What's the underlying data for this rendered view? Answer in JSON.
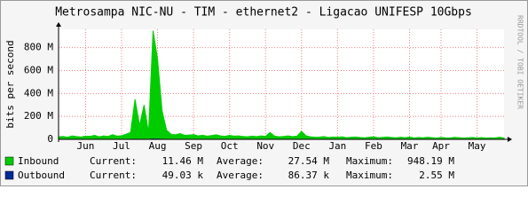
{
  "chart_data": {
    "type": "area",
    "title": "Metrosampa NIC-NU - TIM - ethernet2 - Ligacao UNIFESP 10Gbps",
    "y_label": "bits per second",
    "watermark": "RRDTOOL / TOBI OETIKER",
    "categories": [
      null,
      null,
      null,
      null,
      null,
      null,
      "Jun",
      null,
      null,
      null,
      null,
      null,
      null,
      null,
      "Jul",
      null,
      null,
      null,
      null,
      null,
      null,
      null,
      "Aug",
      null,
      null,
      null,
      null,
      null,
      null,
      null,
      "Sep",
      null,
      null,
      null,
      null,
      null,
      null,
      null,
      "Oct",
      null,
      null,
      null,
      null,
      null,
      null,
      null,
      "Nov",
      null,
      null,
      null,
      null,
      null,
      null,
      null,
      "Dec",
      null,
      null,
      null,
      null,
      null,
      null,
      null,
      "Jan",
      null,
      null,
      null,
      null,
      null,
      null,
      null,
      "Feb",
      null,
      null,
      null,
      null,
      null,
      null,
      null,
      "Mar",
      null,
      null,
      null,
      null,
      null,
      null,
      "Apr",
      null,
      null,
      null,
      null,
      null,
      null,
      null,
      "May",
      null,
      null,
      null,
      null,
      null,
      null
    ],
    "ylim": [
      0,
      960
    ],
    "yticks": [
      0,
      {
        "value": 200,
        "label": "200 M"
      },
      {
        "value": 400,
        "label": "400 M"
      },
      {
        "value": 600,
        "label": "600 M"
      },
      {
        "value": 800,
        "label": "800 M"
      }
    ],
    "grid": true,
    "stat_labels": [
      "Current:",
      "Average:",
      "Maximum:"
    ],
    "series": [
      {
        "name": "Inbound",
        "color": "#00cc00",
        "style": "area",
        "stats": [
          "11.46 M",
          "27.54 M",
          "948.19 M"
        ],
        "values": [
          22,
          25,
          18,
          30,
          24,
          20,
          28,
          26,
          35,
          22,
          30,
          25,
          40,
          28,
          32,
          45,
          60,
          350,
          120,
          300,
          60,
          948.19,
          700,
          250,
          80,
          45,
          40,
          50,
          35,
          38,
          42,
          30,
          36,
          28,
          33,
          40,
          30,
          26,
          35,
          28,
          30,
          25,
          22,
          28,
          24,
          30,
          26,
          60,
          28,
          22,
          25,
          30,
          24,
          28,
          70,
          30,
          22,
          18,
          20,
          24,
          16,
          20,
          18,
          22,
          15,
          18,
          20,
          16,
          14,
          18,
          22,
          15,
          17,
          20,
          16,
          14,
          18,
          15,
          20,
          13,
          16,
          14,
          18,
          15,
          12,
          16,
          14,
          13,
          17,
          15,
          12,
          14,
          16,
          13,
          15,
          12,
          14,
          13,
          18,
          11.46
        ]
      },
      {
        "name": "Outbound",
        "color": "#002a97",
        "style": "line",
        "stats": [
          "49.03 k",
          "86.37 k",
          "2.55 M"
        ],
        "values": [
          0.08,
          0.06,
          0.09,
          0.07,
          0.1,
          0.06,
          0.08,
          0.12,
          0.09,
          0.07,
          0.09,
          0.11,
          0.08,
          0.1,
          0.13,
          0.09,
          0.2,
          0.9,
          0.3,
          0.7,
          0.2,
          2.55,
          1.6,
          0.5,
          0.15,
          0.1,
          0.09,
          0.11,
          0.08,
          0.1,
          0.09,
          0.07,
          0.1,
          0.08,
          0.09,
          0.11,
          0.08,
          0.07,
          0.1,
          0.09,
          0.08,
          0.07,
          0.06,
          0.09,
          0.07,
          0.08,
          0.07,
          0.12,
          0.08,
          0.06,
          0.07,
          0.09,
          0.06,
          0.08,
          0.14,
          0.08,
          0.06,
          0.05,
          0.06,
          0.07,
          0.05,
          0.06,
          0.05,
          0.07,
          0.05,
          0.06,
          0.06,
          0.05,
          0.04,
          0.06,
          0.07,
          0.05,
          0.05,
          0.06,
          0.05,
          0.04,
          0.06,
          0.05,
          0.06,
          0.04,
          0.05,
          0.04,
          0.06,
          0.05,
          0.04,
          0.05,
          0.04,
          0.04,
          0.05,
          0.05,
          0.04,
          0.05,
          0.05,
          0.04,
          0.05,
          0.04,
          0.05,
          0.04,
          0.06,
          0.049
        ]
      }
    ]
  }
}
